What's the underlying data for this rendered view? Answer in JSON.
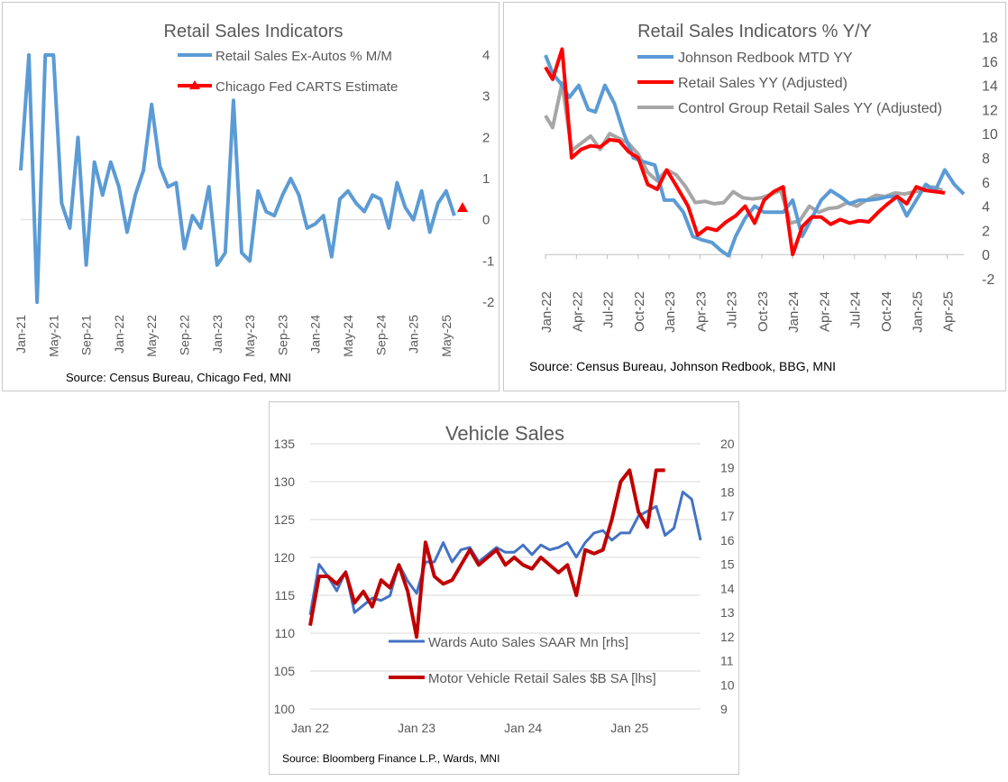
{
  "colors": {
    "blue": "#5B9BD5",
    "red": "#FF0000",
    "gray": "#A6A6A6",
    "darkblue": "#4472C4",
    "darkred": "#C00000"
  },
  "chart_data": [
    {
      "type": "line",
      "title": "Retail Sales Indicators",
      "source": "Source: Census Bureau, Chicago Fed, MNI",
      "ylim": [
        -2,
        4
      ],
      "yticks": [
        "-2",
        "-1",
        "0",
        "1",
        "2",
        "3",
        "4"
      ],
      "x_tick_labels": [
        "Jan-21",
        "May-21",
        "Sep-21",
        "Jan-22",
        "May-22",
        "Sep-22",
        "Jan-23",
        "May-23",
        "Sep-23",
        "Jan-24",
        "May-24",
        "Sep-24",
        "Jan-25",
        "May-25"
      ],
      "x_tick_index": [
        0,
        4,
        8,
        12,
        16,
        20,
        24,
        28,
        32,
        36,
        40,
        44,
        48,
        52
      ],
      "series": [
        {
          "name": "Retail Sales Ex-Autos % M/M",
          "values": [
            1.2,
            4.0,
            -2.0,
            4.0,
            4.0,
            0.4,
            -0.2,
            2.0,
            -1.1,
            1.4,
            0.6,
            1.4,
            0.8,
            -0.3,
            0.6,
            1.2,
            2.8,
            1.3,
            0.8,
            0.9,
            -0.7,
            0.1,
            -0.2,
            0.8,
            -1.1,
            -0.8,
            2.9,
            -0.8,
            -1.0,
            0.7,
            0.2,
            0.1,
            0.6,
            1.0,
            0.6,
            -0.2,
            -0.1,
            0.1,
            -0.9,
            0.5,
            0.7,
            0.4,
            0.2,
            0.6,
            0.5,
            -0.2,
            0.9,
            0.3,
            0.0,
            0.7,
            -0.3,
            0.4,
            0.7,
            0.1
          ]
        },
        {
          "name": "Chicago Fed CARTS Estimate",
          "x_index": [
            54
          ],
          "values": [
            0.3
          ]
        }
      ]
    },
    {
      "type": "line",
      "title": "Retail Sales Indicators % Y/Y",
      "source": "Source: Census Bureau, Johnson Redbook, BBG, MNI",
      "ylim": [
        -2,
        18
      ],
      "yticks": [
        "-2",
        "0",
        "2",
        "4",
        "6",
        "8",
        "10",
        "12",
        "14",
        "16",
        "18"
      ],
      "x_tick_labels": [
        "Jan-22",
        "Apr-22",
        "Jul-22",
        "Oct-22",
        "Jan-23",
        "Apr-23",
        "Jul-23",
        "Oct-23",
        "Jan-24",
        "Apr-24",
        "Jul-24",
        "Oct-24",
        "Jan-25",
        "Apr-25"
      ],
      "x_tick_week": [
        0,
        13,
        26,
        39,
        52,
        65,
        78,
        91,
        104,
        117,
        130,
        143,
        156,
        169
      ],
      "series": [
        {
          "name": "Johnson Redbook MTD YY",
          "points": [
            [
              0,
              16.5
            ],
            [
              3,
              15
            ],
            [
              7,
              14
            ],
            [
              10,
              13
            ],
            [
              14,
              14
            ],
            [
              18,
              12
            ],
            [
              21,
              11.8
            ],
            [
              25,
              14
            ],
            [
              29,
              12.5
            ],
            [
              33,
              10
            ],
            [
              37,
              8
            ],
            [
              41,
              7.7
            ],
            [
              46,
              7.4
            ],
            [
              50,
              4.5
            ],
            [
              54,
              4.5
            ],
            [
              58,
              3.5
            ],
            [
              62,
              1.5
            ],
            [
              66,
              1.2
            ],
            [
              70,
              1.0
            ],
            [
              74,
              0.3
            ],
            [
              77,
              -0.1
            ],
            [
              80,
              1.5
            ],
            [
              84,
              3
            ],
            [
              88,
              4
            ],
            [
              92,
              3.5
            ],
            [
              96,
              3.5
            ],
            [
              100,
              3.5
            ],
            [
              104,
              4.5
            ],
            [
              108,
              1.5
            ],
            [
              112,
              3
            ],
            [
              116,
              4.5
            ],
            [
              120,
              5.3
            ],
            [
              124,
              4.8
            ],
            [
              128,
              4.2
            ],
            [
              132,
              4.5
            ],
            [
              136,
              4.5
            ],
            [
              140,
              4.6
            ],
            [
              144,
              4.8
            ],
            [
              148,
              4.8
            ],
            [
              152,
              3.2
            ],
            [
              156,
              4.5
            ],
            [
              160,
              5.8
            ],
            [
              164,
              5.3
            ],
            [
              168,
              7.0
            ],
            [
              172,
              5.8
            ],
            [
              176,
              5.0
            ]
          ]
        },
        {
          "name": "Retail Sales YY (Adjusted)",
          "points": [
            [
              0,
              15.5
            ],
            [
              3,
              14.5
            ],
            [
              7,
              17.0
            ],
            [
              11,
              8.0
            ],
            [
              15,
              8.7
            ],
            [
              19,
              9.0
            ],
            [
              23,
              8.9
            ],
            [
              27,
              9.5
            ],
            [
              31,
              9.4
            ],
            [
              35,
              8.5
            ],
            [
              39,
              8.0
            ],
            [
              43,
              5.8
            ],
            [
              47,
              5.4
            ],
            [
              51,
              7.0
            ],
            [
              55,
              5.7
            ],
            [
              60,
              4.0
            ],
            [
              64,
              1.6
            ],
            [
              68,
              2.2
            ],
            [
              72,
              2.0
            ],
            [
              76,
              2.7
            ],
            [
              80,
              3.2
            ],
            [
              84,
              4.0
            ],
            [
              88,
              2.6
            ],
            [
              92,
              4.5
            ],
            [
              96,
              5.2
            ],
            [
              100,
              5.6
            ],
            [
              104,
              0.0
            ],
            [
              108,
              2.3
            ],
            [
              112,
              3.1
            ],
            [
              116,
              3.1
            ],
            [
              120,
              2.5
            ],
            [
              124,
              2.9
            ],
            [
              128,
              2.6
            ],
            [
              132,
              2.8
            ],
            [
              136,
              2.7
            ],
            [
              140,
              3.5
            ],
            [
              144,
              4.2
            ],
            [
              148,
              4.8
            ],
            [
              152,
              4.2
            ],
            [
              156,
              5.6
            ],
            [
              160,
              5.3
            ],
            [
              164,
              5.2
            ],
            [
              168,
              5.1
            ]
          ]
        },
        {
          "name": "Control Group Retail Sales YY (Adjusted)",
          "points": [
            [
              0,
              11.5
            ],
            [
              3,
              10.5
            ],
            [
              7,
              14.2
            ],
            [
              11,
              8.6
            ],
            [
              15,
              9.2
            ],
            [
              19,
              9.8
            ],
            [
              23,
              8.7
            ],
            [
              27,
              10.0
            ],
            [
              31,
              9.6
            ],
            [
              35,
              9.2
            ],
            [
              39,
              8.3
            ],
            [
              43,
              6.8
            ],
            [
              47,
              6.1
            ],
            [
              51,
              7.0
            ],
            [
              55,
              6.6
            ],
            [
              59,
              5.6
            ],
            [
              63,
              4.3
            ],
            [
              67,
              4.4
            ],
            [
              71,
              4.2
            ],
            [
              75,
              4.3
            ],
            [
              79,
              5.2
            ],
            [
              83,
              4.7
            ],
            [
              87,
              4.6
            ],
            [
              91,
              4.7
            ],
            [
              95,
              5.0
            ],
            [
              99,
              5.3
            ],
            [
              103,
              2.6
            ],
            [
              107,
              2.8
            ],
            [
              111,
              4.0
            ],
            [
              115,
              3.5
            ],
            [
              119,
              3.8
            ],
            [
              123,
              3.9
            ],
            [
              127,
              4.3
            ],
            [
              131,
              4.0
            ],
            [
              135,
              4.5
            ],
            [
              139,
              4.9
            ],
            [
              143,
              4.8
            ],
            [
              147,
              5.1
            ],
            [
              151,
              5.0
            ],
            [
              155,
              5.2
            ],
            [
              159,
              5.3
            ],
            [
              163,
              5.6
            ],
            [
              167,
              5.3
            ]
          ]
        }
      ]
    },
    {
      "type": "line",
      "title": "Vehicle Sales",
      "source": "Source: Bloomberg Finance L.P., Wards, MNI",
      "y_left_lim": [
        100,
        135
      ],
      "y_left_ticks": [
        "100",
        "105",
        "110",
        "115",
        "120",
        "125",
        "130",
        "135"
      ],
      "y_right_lim": [
        9,
        20
      ],
      "y_right_ticks": [
        "9",
        "10",
        "11",
        "12",
        "13",
        "14",
        "15",
        "16",
        "17",
        "18",
        "19",
        "20"
      ],
      "x_tick_labels": [
        "Jan 22",
        "Jan 23",
        "Jan 24",
        "Jan 25"
      ],
      "x_tick_month": [
        0,
        12,
        24,
        36
      ],
      "series": [
        {
          "name": "Wards Auto Sales SAAR Mn [rhs]",
          "axis": "right",
          "values": [
            12.9,
            15.0,
            14.5,
            13.9,
            14.7,
            13.0,
            13.3,
            13.6,
            13.5,
            13.7,
            15.0,
            14.3,
            13.8,
            15.1,
            15.1,
            15.9,
            15.1,
            15.6,
            15.7,
            15.1,
            15.4,
            15.7,
            15.5,
            15.5,
            15.8,
            15.4,
            15.8,
            15.6,
            15.7,
            15.9,
            15.3,
            15.9,
            16.3,
            16.4,
            16.0,
            16.3,
            16.3,
            17.0,
            17.2,
            17.4,
            16.2,
            16.5,
            18.0,
            17.7,
            16.0
          ]
        },
        {
          "name": "Motor Vehicle Retail Sales $B SA [lhs]",
          "axis": "left",
          "values": [
            111,
            117.5,
            117.5,
            116.5,
            118,
            114,
            115.5,
            113.5,
            117,
            116,
            119,
            115.5,
            109.5,
            122,
            117.5,
            116.5,
            117,
            119,
            121,
            119,
            120,
            121,
            119,
            120,
            119,
            118.5,
            120,
            119,
            118,
            119,
            115,
            121,
            120.5,
            121,
            125,
            130,
            131.5,
            126,
            124,
            131.5,
            131.5
          ]
        }
      ]
    }
  ]
}
